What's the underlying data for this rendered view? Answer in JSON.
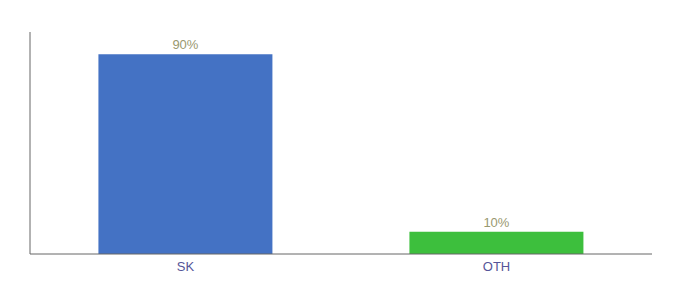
{
  "chart_data": {
    "type": "bar",
    "categories": [
      "SK",
      "OTH"
    ],
    "values": [
      90,
      10
    ],
    "colors": [
      "#4472c4",
      "#3dbf3d"
    ],
    "ylim": [
      0,
      100
    ],
    "data_labels": true,
    "value_labels": [
      "90%",
      "10%"
    ],
    "tick_labels": "x",
    "grid": false
  }
}
